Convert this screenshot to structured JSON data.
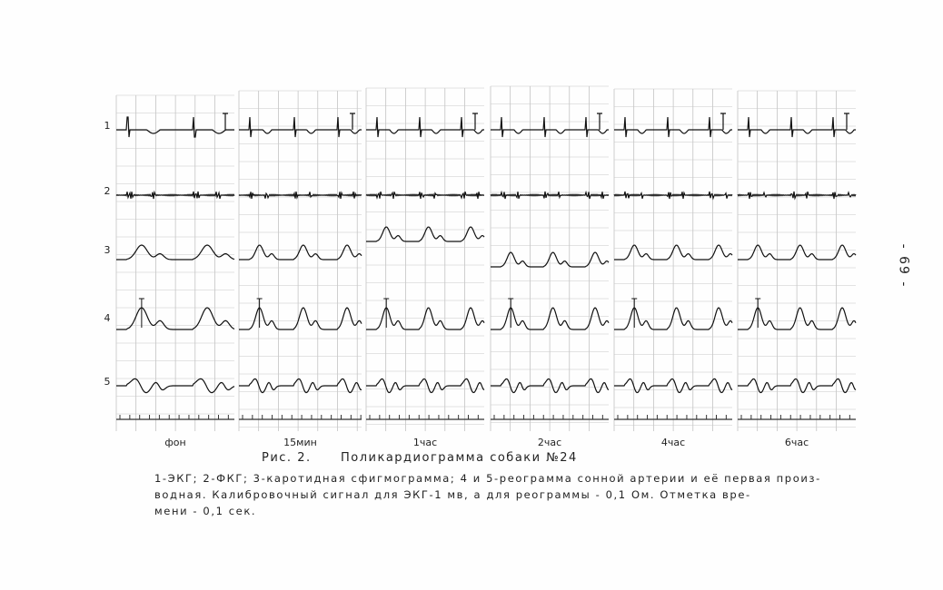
{
  "page_number": "- 69 -",
  "figure": {
    "row_labels": [
      "1",
      "2",
      "3",
      "4",
      "5"
    ],
    "column_labels": [
      "фон",
      "15мин",
      "1час",
      "2час",
      "4час",
      "6час"
    ],
    "caption_label": "Рис. 2.",
    "caption_title": "Поликардиограмма собаки №24"
  },
  "legend": [
    "1-ЭКГ; 2-ФКГ; 3-каротидная сфигмограмма; 4 и 5-реограмма сонной артерии и её первая произ-",
    "водная. Калибровочный сигнал для ЭКГ-1 мв, а для реограммы - 0,1 Ом. Отметка вре-",
    "мени - 0,1 сек."
  ]
}
